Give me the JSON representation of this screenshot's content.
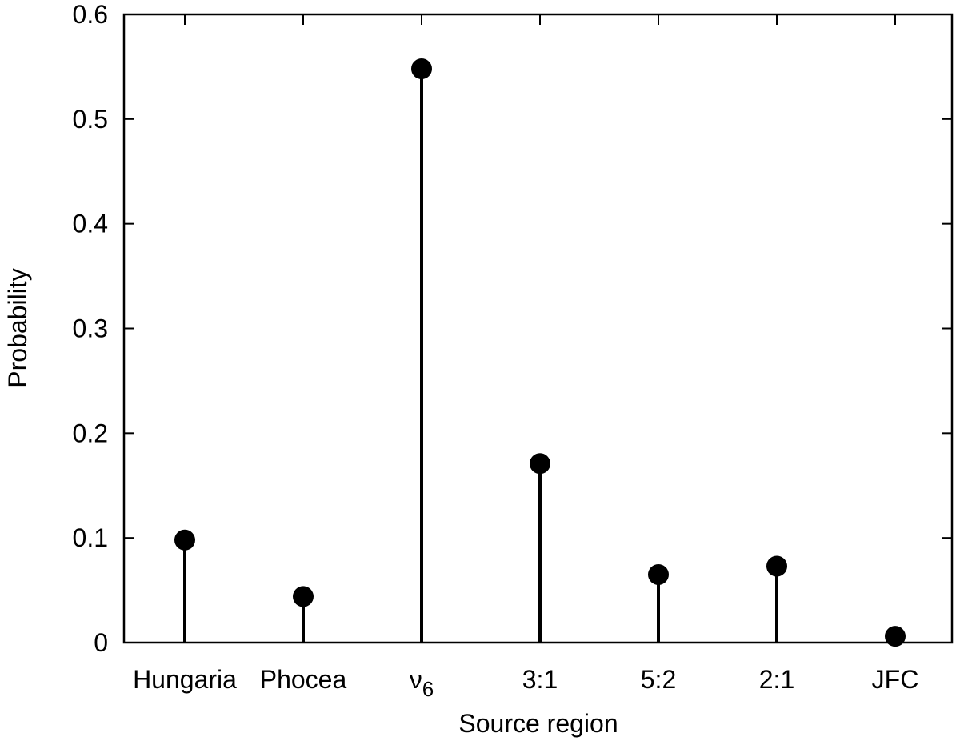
{
  "chart_data": {
    "type": "lollipop",
    "categories": [
      "Hungaria",
      "Phocea",
      "ν6",
      "3:1",
      "5:2",
      "2:1",
      "JFC"
    ],
    "category_labels": [
      {
        "base": "Hungaria",
        "sub": ""
      },
      {
        "base": "Phocea",
        "sub": ""
      },
      {
        "base": "ν",
        "sub": "6"
      },
      {
        "base": "3:1",
        "sub": ""
      },
      {
        "base": "5:2",
        "sub": ""
      },
      {
        "base": "2:1",
        "sub": ""
      },
      {
        "base": "JFC",
        "sub": ""
      }
    ],
    "values": [
      0.098,
      0.044,
      0.548,
      0.171,
      0.065,
      0.073,
      0.006
    ],
    "xlabel": "Source region",
    "ylabel": "Probability",
    "ylim": [
      0,
      0.6
    ],
    "yticks": [
      0,
      0.1,
      0.2,
      0.3,
      0.4,
      0.5,
      0.6
    ],
    "ytick_labels": [
      "0",
      "0.1",
      "0.2",
      "0.3",
      "0.4",
      "0.5",
      "0.6"
    ],
    "grid": false,
    "color": "#000000"
  }
}
